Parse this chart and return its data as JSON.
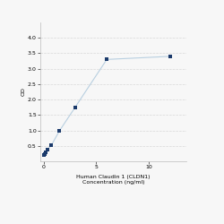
{
  "x": [
    0.0,
    0.0469,
    0.0938,
    0.1875,
    0.375,
    0.75,
    1.5,
    3,
    6,
    12
  ],
  "y": [
    0.195,
    0.21,
    0.235,
    0.28,
    0.38,
    0.52,
    0.98,
    1.75,
    3.3,
    3.4
  ],
  "line_color": "#b8cfe0",
  "marker_color": "#1b3a6b",
  "marker_size": 3.5,
  "marker_style": "s",
  "xlabel_line1": "Human Claudin 1 (CLDN1)",
  "xlabel_line2": "Concentration (ng/ml)",
  "ylabel": "OD",
  "xlim": [
    -0.3,
    13.5
  ],
  "ylim": [
    0.0,
    4.5
  ],
  "yticks": [
    0.5,
    1.0,
    1.5,
    2.0,
    2.5,
    3.0,
    3.5,
    4.0
  ],
  "xtick_positions": [
    0,
    5,
    10
  ],
  "xtick_labels": [
    "0",
    "5",
    "10"
  ],
  "grid_color": "#d8d8d8",
  "grid_style": "--",
  "background_color": "#f7f7f7",
  "label_fontsize": 4.5,
  "tick_fontsize": 4.5,
  "linewidth": 0.8
}
